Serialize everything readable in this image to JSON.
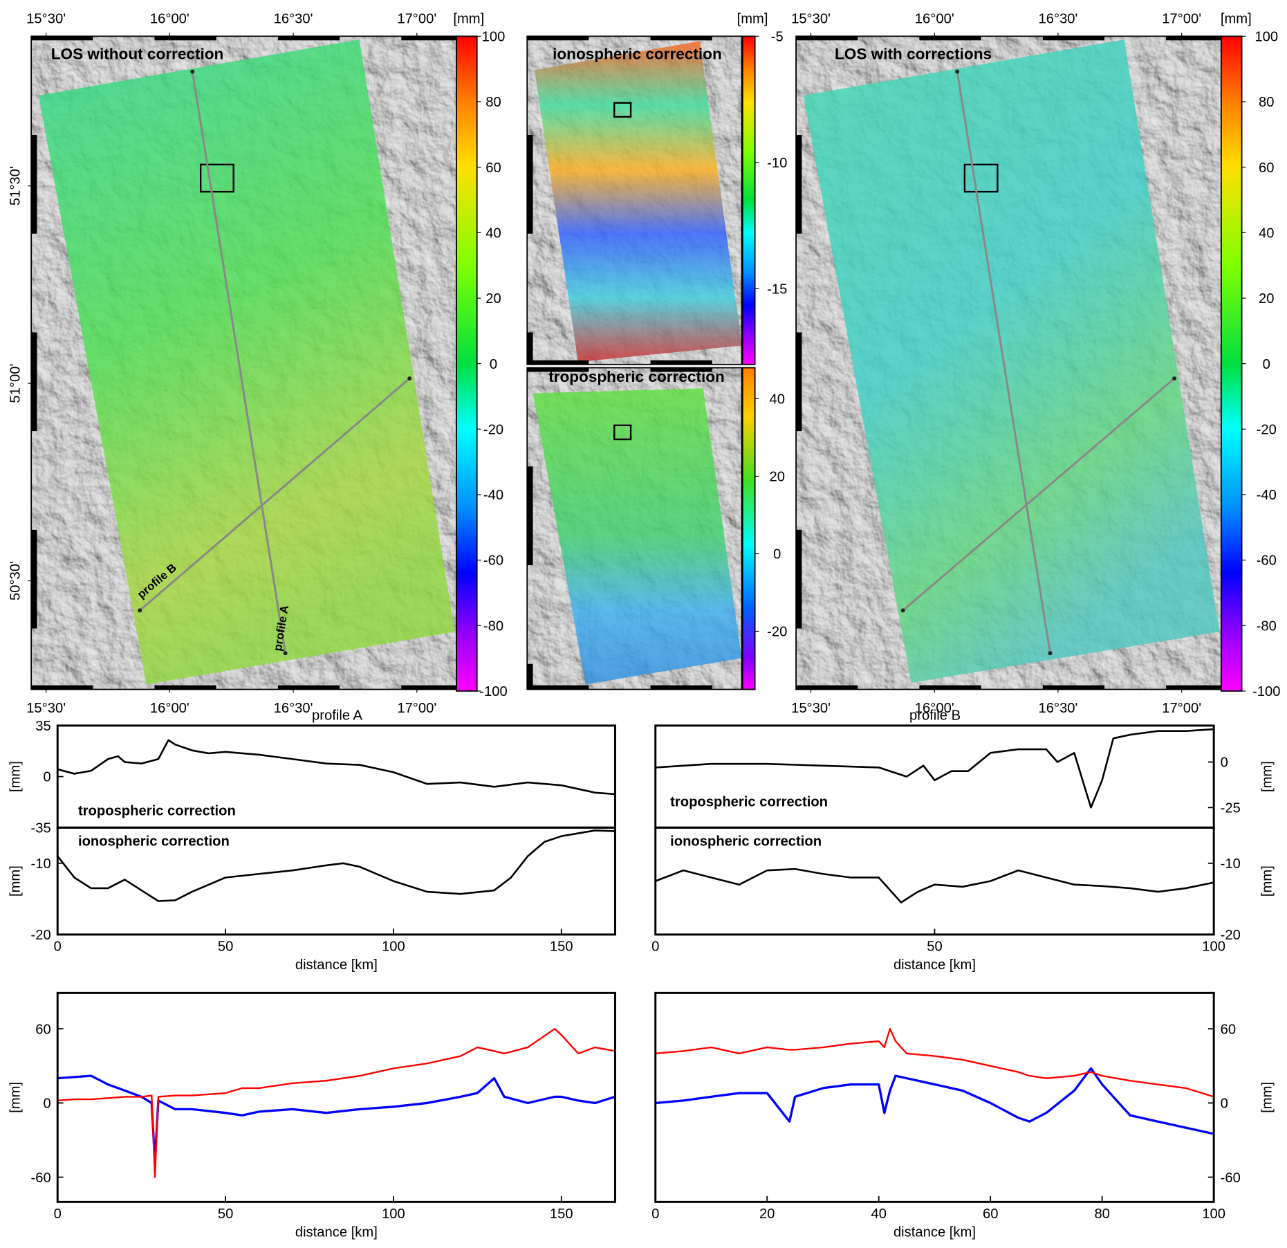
{
  "chart_data": [
    {
      "type": "map",
      "title": "LOS without correction",
      "colorbar_label": "[mm]",
      "clim": [
        -100,
        100
      ],
      "cticks": [
        100,
        80,
        60,
        40,
        20,
        0,
        -20,
        -40,
        -60,
        -80,
        -100
      ],
      "xlim": [
        15.44,
        17.16
      ],
      "xticks": [
        {
          "value": 15.5,
          "label": "15°30'"
        },
        {
          "value": 16,
          "label": "16°00'"
        },
        {
          "value": 16.5,
          "label": "16°30'"
        },
        {
          "value": 17,
          "label": "17°00'"
        }
      ],
      "ylim": [
        50.225,
        51.879
      ],
      "yticks": [
        {
          "value": 50.5,
          "label": "50°30'"
        },
        {
          "value": 51,
          "label": "51°00'"
        },
        {
          "value": 51.5,
          "label": "51°30'"
        }
      ],
      "annotations": [
        "profile A",
        "profile B"
      ]
    },
    {
      "type": "map",
      "title": "ionospheric correction",
      "colorbar_label": "[mm]",
      "clim": [
        -18,
        -5
      ],
      "cticks": [
        -5,
        -10,
        -15
      ]
    },
    {
      "type": "map",
      "title": "tropospheric correction",
      "clim": [
        -35,
        48
      ],
      "cticks": [
        40,
        20,
        0,
        -20
      ]
    },
    {
      "type": "map",
      "title": "LOS with corrections",
      "colorbar_label": "[mm]",
      "clim": [
        -100,
        100
      ],
      "cticks": [
        100,
        80,
        60,
        40,
        20,
        0,
        -20,
        -40,
        -60,
        -80,
        -100
      ],
      "xlim": [
        15.44,
        17.16
      ],
      "xticks": [
        {
          "value": 15.5,
          "label": "15°30'"
        },
        {
          "value": 16,
          "label": "16°00'"
        },
        {
          "value": 16.5,
          "label": "16°30'"
        },
        {
          "value": 17,
          "label": "17°00'"
        }
      ]
    },
    {
      "type": "line",
      "title": "profile A",
      "label": "tropospheric correction",
      "ylabel": "[mm]",
      "y_axis_position": "left",
      "xlim": [
        0,
        166
      ],
      "ylim": [
        -35,
        35
      ],
      "yticks": [
        35,
        0,
        -35
      ],
      "color": "#000000",
      "x": [
        0,
        5,
        10,
        15,
        18,
        20,
        25,
        30,
        33,
        35,
        40,
        45,
        50,
        55,
        60,
        70,
        80,
        90,
        100,
        110,
        120,
        130,
        140,
        150,
        160,
        166
      ],
      "values": [
        5,
        2,
        4,
        12,
        14,
        10,
        9,
        12,
        25,
        22,
        18,
        16,
        17,
        16,
        15,
        12,
        9,
        8,
        3,
        -5,
        -4,
        -7,
        -4,
        -6,
        -11,
        -12
      ]
    },
    {
      "type": "line",
      "label": "ionospheric correction",
      "ylabel": "[mm]",
      "y_axis_position": "left",
      "xlim": [
        0,
        166
      ],
      "ylim": [
        -20,
        -5
      ],
      "yticks": [
        -10,
        -20
      ],
      "xticks": [
        0,
        50,
        100,
        150
      ],
      "xlabel": "distance [km]",
      "color": "#000000",
      "x": [
        0,
        5,
        10,
        15,
        20,
        25,
        30,
        35,
        40,
        50,
        60,
        70,
        80,
        85,
        90,
        100,
        110,
        120,
        130,
        135,
        140,
        145,
        150,
        160,
        166
      ],
      "values": [
        -9,
        -12,
        -13.5,
        -13.5,
        -12.3,
        -13.8,
        -15.3,
        -15.2,
        -14,
        -12,
        -11.5,
        -11,
        -10.3,
        -10,
        -10.5,
        -12.5,
        -14,
        -14.3,
        -13.8,
        -12,
        -9,
        -7,
        -6.2,
        -5.4,
        -5.5
      ]
    },
    {
      "type": "line",
      "title": "profile B",
      "label": "tropospheric correction",
      "ylabel": "[mm]",
      "y_axis_position": "right",
      "xlim": [
        0,
        100
      ],
      "ylim": [
        -36,
        20
      ],
      "yticks": [
        0,
        -25
      ],
      "color": "#000000",
      "x": [
        0,
        10,
        20,
        30,
        40,
        45,
        48,
        50,
        53,
        56,
        60,
        65,
        70,
        72,
        75,
        77,
        78,
        80,
        82,
        85,
        90,
        95,
        100
      ],
      "values": [
        -3,
        -1,
        -1,
        -2,
        -3,
        -8,
        -2,
        -10,
        -5,
        -5,
        5,
        7,
        7,
        0,
        5,
        -15,
        -25,
        -10,
        13,
        15,
        17,
        17,
        18
      ]
    },
    {
      "type": "line",
      "label": "ionospheric correction",
      "ylabel": "[mm]",
      "y_axis_position": "right",
      "xlim": [
        0,
        100
      ],
      "ylim": [
        -20,
        -5
      ],
      "yticks": [
        -10,
        -20
      ],
      "xticks": [
        0,
        50,
        100
      ],
      "xlabel": "distance [km]",
      "color": "#000000",
      "x": [
        0,
        5,
        10,
        15,
        20,
        25,
        30,
        35,
        40,
        44,
        47,
        50,
        55,
        60,
        65,
        70,
        75,
        80,
        85,
        90,
        95,
        100
      ],
      "values": [
        -12.5,
        -11,
        -12,
        -13,
        -11,
        -10.8,
        -11.5,
        -12,
        -12,
        -15.5,
        -14,
        -13,
        -13.3,
        -12.5,
        -11,
        -12,
        -13,
        -13.2,
        -13.5,
        -14,
        -13.5,
        -12.7
      ]
    },
    {
      "type": "line",
      "ylabel": "[mm]",
      "y_axis_position": "left",
      "xlim": [
        0,
        166
      ],
      "ylim": [
        -80,
        89
      ],
      "yticks": [
        60,
        0,
        -60
      ],
      "xticks": [
        0,
        50,
        100,
        150
      ],
      "xlabel": "distance [km]",
      "x": [
        0,
        5,
        10,
        15,
        20,
        25,
        28,
        29,
        30,
        35,
        40,
        50,
        55,
        60,
        70,
        80,
        90,
        100,
        110,
        120,
        125,
        130,
        133,
        140,
        148,
        150,
        155,
        160,
        166
      ],
      "series": [
        {
          "color": "#0000ff",
          "values": [
            20,
            21,
            22,
            15,
            10,
            5,
            0,
            -48,
            2,
            -5,
            -5,
            -8,
            -10,
            -7,
            -5,
            -8,
            -5,
            -3,
            0,
            5,
            8,
            20,
            5,
            0,
            5,
            5,
            2,
            0,
            5
          ]
        },
        {
          "color": "#ff0000",
          "values": [
            2,
            3,
            3,
            4,
            5,
            5,
            6,
            -60,
            5,
            6,
            6,
            8,
            12,
            12,
            16,
            18,
            22,
            28,
            32,
            38,
            45,
            42,
            40,
            45,
            60,
            55,
            40,
            45,
            42
          ]
        }
      ]
    },
    {
      "type": "line",
      "ylabel": "[mm]",
      "y_axis_position": "right",
      "xlim": [
        0,
        100
      ],
      "ylim": [
        -80,
        89
      ],
      "yticks": [
        60,
        0,
        -60
      ],
      "xticks": [
        0,
        20,
        40,
        60,
        80,
        100
      ],
      "xlabel": "distance [km]",
      "x": [
        0,
        5,
        10,
        15,
        20,
        24,
        25,
        30,
        35,
        40,
        41,
        42,
        43,
        45,
        50,
        55,
        60,
        65,
        67,
        70,
        75,
        78,
        80,
        85,
        90,
        95,
        100
      ],
      "series": [
        {
          "color": "#0000ff",
          "values": [
            0,
            2,
            5,
            8,
            8,
            -15,
            5,
            12,
            15,
            15,
            -8,
            10,
            22,
            20,
            15,
            10,
            0,
            -12,
            -15,
            -8,
            10,
            28,
            15,
            -10,
            -15,
            -20,
            -25
          ]
        },
        {
          "color": "#ff0000",
          "values": [
            40,
            42,
            45,
            40,
            45,
            43,
            43,
            45,
            48,
            50,
            45,
            60,
            50,
            40,
            38,
            35,
            30,
            25,
            22,
            20,
            22,
            25,
            22,
            18,
            15,
            12,
            5
          ]
        }
      ]
    }
  ]
}
